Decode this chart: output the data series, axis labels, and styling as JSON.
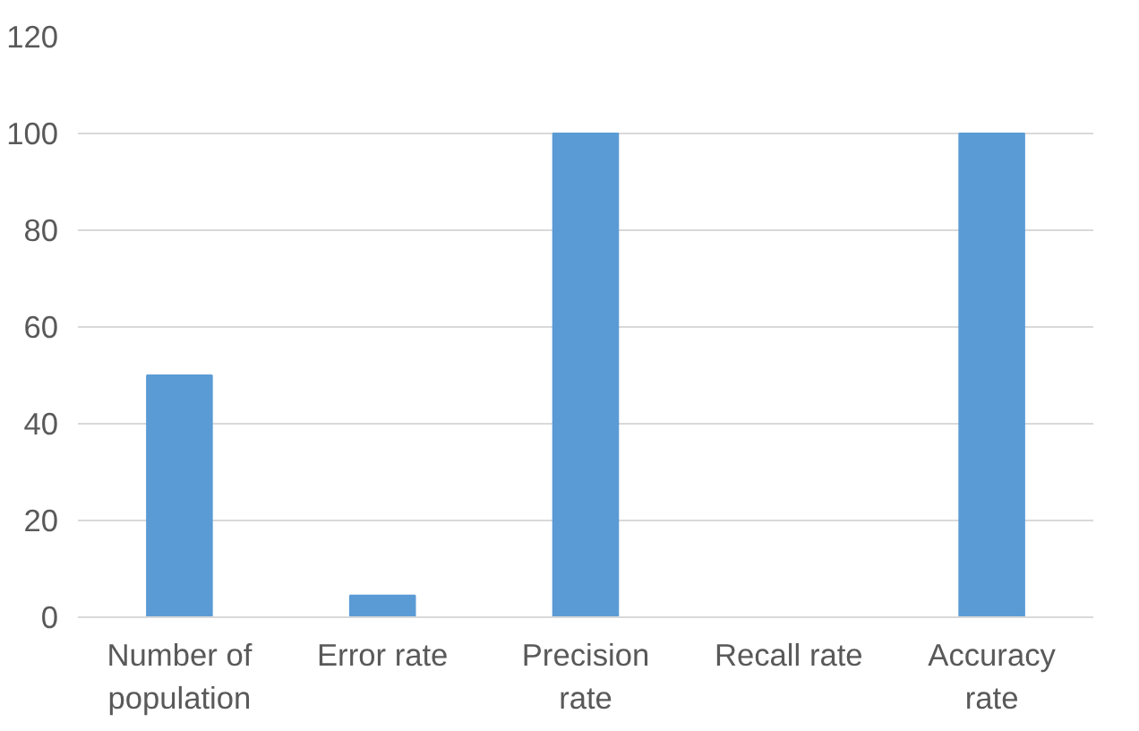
{
  "chart_data": {
    "type": "bar",
    "categories": [
      "Number of population",
      "Error rate",
      "Precision rate",
      "Recall rate",
      "Accuracy rate"
    ],
    "values": [
      50,
      4.5,
      100,
      0,
      100
    ],
    "color": "#5b9bd5",
    "ylim": [
      0,
      120
    ],
    "yticks": [
      0,
      20,
      40,
      60,
      80,
      100,
      120
    ],
    "grid": "y"
  }
}
